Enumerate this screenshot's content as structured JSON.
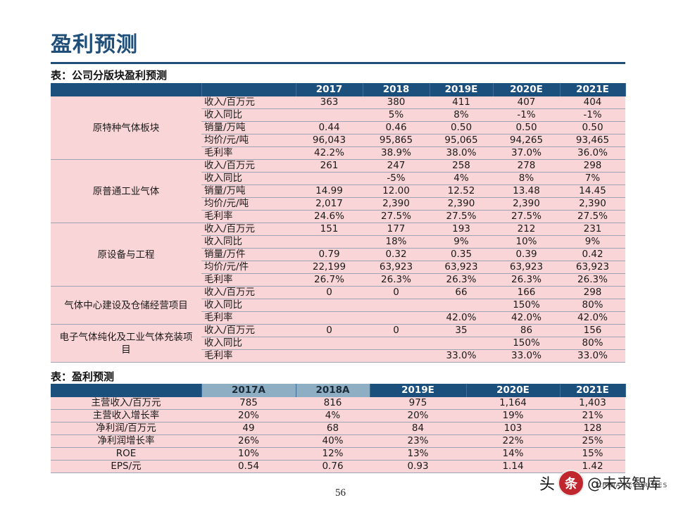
{
  "page": {
    "title": "盈利预测",
    "number": "56"
  },
  "segment_table": {
    "caption": "表：公司分版块盈利预测",
    "columns": [
      "",
      "",
      "2017",
      "2018",
      "2019E",
      "2020E",
      "2021E"
    ],
    "segments": [
      {
        "name": "原特种气体板块",
        "rows": [
          {
            "metric": "收入/百万元",
            "values": [
              "363",
              "380",
              "411",
              "407",
              "404"
            ]
          },
          {
            "metric": "收入同比",
            "values": [
              "",
              "5%",
              "8%",
              "-1%",
              "-1%"
            ]
          },
          {
            "metric": "销量/万吨",
            "values": [
              "0.44",
              "0.46",
              "0.50",
              "0.50",
              "0.50"
            ]
          },
          {
            "metric": "均价/元/吨",
            "values": [
              "96,043",
              "95,865",
              "95,065",
              "94,265",
              "93,465"
            ]
          },
          {
            "metric": "毛利率",
            "values": [
              "42.2%",
              "38.9%",
              "38.0%",
              "37.0%",
              "36.0%"
            ]
          }
        ]
      },
      {
        "name": "原普通工业气体",
        "rows": [
          {
            "metric": "收入/百万元",
            "values": [
              "261",
              "247",
              "258",
              "278",
              "298"
            ]
          },
          {
            "metric": "收入同比",
            "values": [
              "",
              "-5%",
              "4%",
              "8%",
              "7%"
            ]
          },
          {
            "metric": "销量/万吨",
            "values": [
              "14.99",
              "12.00",
              "12.52",
              "13.48",
              "14.45"
            ]
          },
          {
            "metric": "均价/元/吨",
            "values": [
              "2,017",
              "2,390",
              "2,390",
              "2,390",
              "2,390"
            ]
          },
          {
            "metric": "毛利率",
            "values": [
              "24.6%",
              "27.5%",
              "27.5%",
              "27.5%",
              "27.5%"
            ]
          }
        ]
      },
      {
        "name": "原设备与工程",
        "rows": [
          {
            "metric": "收入/百万元",
            "values": [
              "151",
              "177",
              "193",
              "212",
              "231"
            ]
          },
          {
            "metric": "收入同比",
            "values": [
              "",
              "18%",
              "9%",
              "10%",
              "9%"
            ]
          },
          {
            "metric": "销量/万件",
            "values": [
              "0.79",
              "0.32",
              "0.35",
              "0.39",
              "0.42"
            ]
          },
          {
            "metric": "均价/元/件",
            "values": [
              "22,199",
              "63,923",
              "63,923",
              "63,923",
              "63,923"
            ]
          },
          {
            "metric": "毛利率",
            "values": [
              "26.7%",
              "26.3%",
              "26.3%",
              "26.3%",
              "26.3%"
            ]
          }
        ]
      },
      {
        "name": "气体中心建设及仓储经营项目",
        "rows": [
          {
            "metric": "收入/百万元",
            "values": [
              "0",
              "0",
              "66",
              "166",
              "298"
            ]
          },
          {
            "metric": "收入同比",
            "values": [
              "",
              "",
              "",
              "150%",
              "80%"
            ]
          },
          {
            "metric": "毛利率",
            "values": [
              "",
              "",
              "42.0%",
              "42.0%",
              "42.0%"
            ]
          }
        ]
      },
      {
        "name": "电子气体纯化及工业气体充装项目",
        "rows": [
          {
            "metric": "收入/百万元",
            "values": [
              "0",
              "0",
              "35",
              "86",
              "156"
            ]
          },
          {
            "metric": "收入同比",
            "values": [
              "",
              "",
              "",
              "150%",
              "80%"
            ]
          },
          {
            "metric": "毛利率",
            "values": [
              "",
              "",
              "33.0%",
              "33.0%",
              "33.0%"
            ]
          }
        ]
      }
    ]
  },
  "forecast_table": {
    "caption": "表：盈利预测",
    "columns": [
      "",
      "2017A",
      "2018A",
      "2019E",
      "2020E",
      "2021E"
    ],
    "rows": [
      {
        "label": "主营收入/百万元",
        "values": [
          "785",
          "816",
          "975",
          "1,164",
          "1,403"
        ]
      },
      {
        "label": "主营收入增长率",
        "values": [
          "20%",
          "4%",
          "20%",
          "19%",
          "21%"
        ]
      },
      {
        "label": "净利润/百万元",
        "values": [
          "49",
          "68",
          "84",
          "103",
          "128"
        ]
      },
      {
        "label": "净利润增长率",
        "values": [
          "26%",
          "40%",
          "23%",
          "22%",
          "25%"
        ]
      },
      {
        "label": "ROE",
        "values": [
          "10%",
          "12%",
          "13%",
          "14%",
          "15%"
        ]
      },
      {
        "label": "EPS/元",
        "values": [
          "0.54",
          "0.76",
          "0.93",
          "1.14",
          "1.42"
        ]
      }
    ]
  },
  "watermark": {
    "prefix": "头",
    "logo_char": "条",
    "handle": "@未来智库",
    "underlay": "CHINA SECURITIES"
  },
  "colors": {
    "header_dark": "#1b4f7c",
    "header_light": "#8eaec3",
    "row_fill": "#fad5d7",
    "title": "#1f4e79"
  }
}
